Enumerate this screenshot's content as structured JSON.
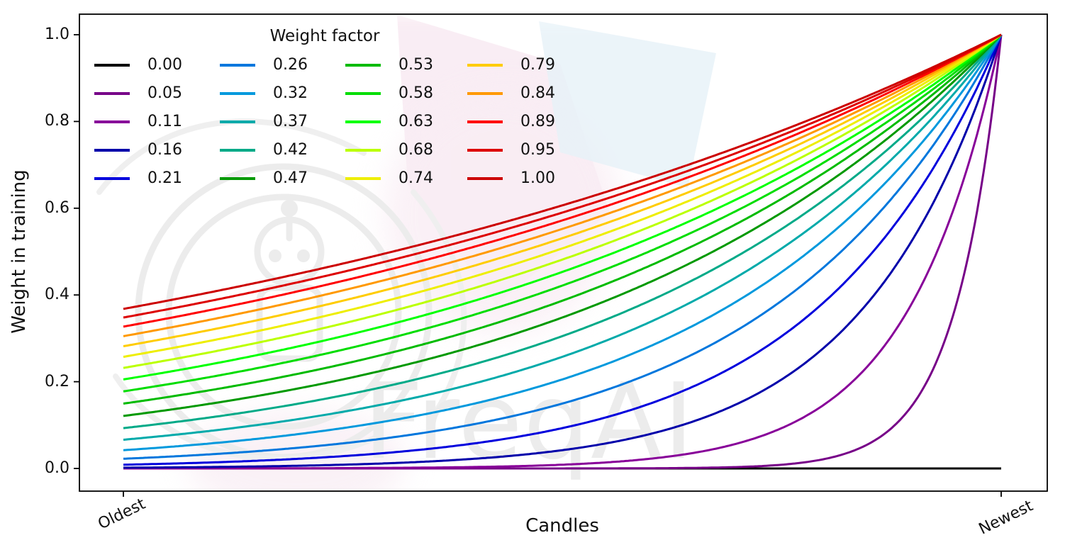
{
  "watermark": {
    "text": "FreqAI",
    "logo": "freqai-robot-logo"
  },
  "axes": {
    "xlabel": "Candles",
    "ylabel": "Weight in training",
    "yticks": [
      "0.0",
      "0.2",
      "0.4",
      "0.6",
      "0.8",
      "1.0"
    ],
    "xticks": [
      "Oldest",
      "Newest"
    ]
  },
  "legend": {
    "title": "Weight factor",
    "columns": 4,
    "rows": 5,
    "frame": false
  },
  "chart_data": {
    "type": "line",
    "title": "",
    "xlabel": "Candles",
    "ylabel": "Weight in training",
    "x_axis": {
      "tick_labels": [
        "Oldest",
        "Newest"
      ],
      "range_note": "candle index from oldest (t=0) to newest (t=1)"
    },
    "ylim": [
      0,
      1
    ],
    "yticks": [
      0.0,
      0.2,
      0.4,
      0.6,
      0.8,
      1.0
    ],
    "grid": false,
    "legend_title": "Weight factor",
    "legend_position": "upper left, 4 columns, no frame",
    "curve_formula": "y(t) = exp(-(1 - t) / weight_factor), t=0 at Oldest, t=1 at Newest; weight_factor = 0 gives y = 0 (flat black line)",
    "series": [
      {
        "label": "0.00",
        "weight_factor": 0.0,
        "color": "#000000",
        "y_at_oldest": 0.0,
        "y_at_newest": 0.0
      },
      {
        "label": "0.05",
        "weight_factor": 0.0526,
        "color": "#770088",
        "y_at_oldest": 0.0,
        "y_at_newest": 1.0
      },
      {
        "label": "0.11",
        "weight_factor": 0.1053,
        "color": "#880099",
        "y_at_oldest": 0.0001,
        "y_at_newest": 1.0
      },
      {
        "label": "0.16",
        "weight_factor": 0.1579,
        "color": "#0000AA",
        "y_at_oldest": 0.0018,
        "y_at_newest": 1.0
      },
      {
        "label": "0.21",
        "weight_factor": 0.2105,
        "color": "#0000DD",
        "y_at_oldest": 0.0087,
        "y_at_newest": 1.0
      },
      {
        "label": "0.26",
        "weight_factor": 0.2632,
        "color": "#0077DD",
        "y_at_oldest": 0.0224,
        "y_at_newest": 1.0
      },
      {
        "label": "0.32",
        "weight_factor": 0.3158,
        "color": "#0099DD",
        "y_at_oldest": 0.0421,
        "y_at_newest": 1.0
      },
      {
        "label": "0.37",
        "weight_factor": 0.3684,
        "color": "#00AAAA",
        "y_at_oldest": 0.0663,
        "y_at_newest": 1.0
      },
      {
        "label": "0.42",
        "weight_factor": 0.4211,
        "color": "#00AA88",
        "y_at_oldest": 0.093,
        "y_at_newest": 1.0
      },
      {
        "label": "0.47",
        "weight_factor": 0.4737,
        "color": "#009900",
        "y_at_oldest": 0.1211,
        "y_at_newest": 1.0
      },
      {
        "label": "0.53",
        "weight_factor": 0.5263,
        "color": "#00BB00",
        "y_at_oldest": 0.1496,
        "y_at_newest": 1.0
      },
      {
        "label": "0.58",
        "weight_factor": 0.5789,
        "color": "#00DD00",
        "y_at_oldest": 0.1777,
        "y_at_newest": 1.0
      },
      {
        "label": "0.63",
        "weight_factor": 0.6316,
        "color": "#00FF00",
        "y_at_oldest": 0.2053,
        "y_at_newest": 1.0
      },
      {
        "label": "0.68",
        "weight_factor": 0.6842,
        "color": "#BBFF00",
        "y_at_oldest": 0.2319,
        "y_at_newest": 1.0
      },
      {
        "label": "0.74",
        "weight_factor": 0.7368,
        "color": "#EEEE00",
        "y_at_oldest": 0.2574,
        "y_at_newest": 1.0
      },
      {
        "label": "0.79",
        "weight_factor": 0.7895,
        "color": "#FFCC00",
        "y_at_oldest": 0.2817,
        "y_at_newest": 1.0
      },
      {
        "label": "0.84",
        "weight_factor": 0.8421,
        "color": "#FF9900",
        "y_at_oldest": 0.3049,
        "y_at_newest": 1.0
      },
      {
        "label": "0.89",
        "weight_factor": 0.8947,
        "color": "#FF0000",
        "y_at_oldest": 0.327,
        "y_at_newest": 1.0
      },
      {
        "label": "0.95",
        "weight_factor": 0.9474,
        "color": "#DD0000",
        "y_at_oldest": 0.348,
        "y_at_newest": 1.0
      },
      {
        "label": "1.00",
        "weight_factor": 1.0,
        "color": "#CC0000",
        "y_at_oldest": 0.3679,
        "y_at_newest": 1.0
      }
    ]
  }
}
